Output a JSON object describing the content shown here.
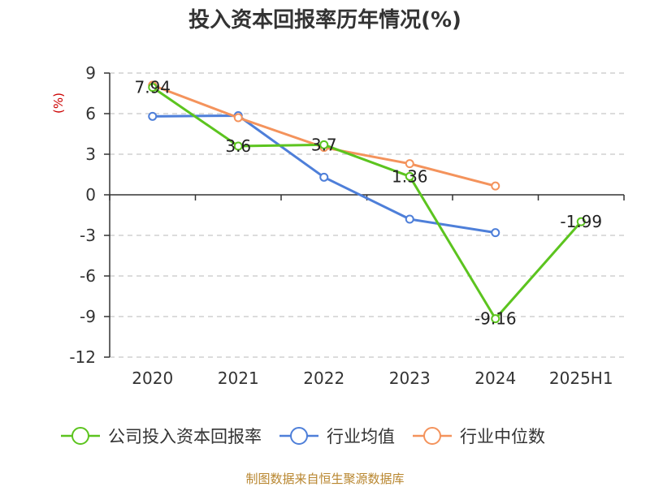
{
  "chart_data": {
    "type": "line",
    "title": "投入资本回报率历年情况(%)",
    "xlabel": "",
    "ylabel": "(%)",
    "categories": [
      "2020",
      "2021",
      "2022",
      "2023",
      "2024",
      "2025H1"
    ],
    "ylim": [
      -12,
      9
    ],
    "yticks": [
      9,
      6,
      3,
      0,
      -3,
      -6,
      -9,
      -12
    ],
    "grid": true,
    "legend_position": "bottom",
    "series": [
      {
        "name": "公司投入资本回报率",
        "color": "#5cc41f",
        "values": [
          7.94,
          3.6,
          3.7,
          1.36,
          -9.16,
          -1.99
        ],
        "labels": [
          "7.94",
          "3.6",
          "3.7",
          "1.36",
          "-9.16",
          "-1.99"
        ]
      },
      {
        "name": "行业均值",
        "color": "#4e7fd9",
        "values": [
          5.8,
          5.85,
          1.3,
          -1.8,
          -2.8,
          null
        ]
      },
      {
        "name": "行业中位数",
        "color": "#f4935c",
        "values": [
          8.1,
          5.7,
          3.5,
          2.3,
          0.65,
          null
        ]
      }
    ]
  },
  "source": "制图数据来自恒生聚源数据库"
}
